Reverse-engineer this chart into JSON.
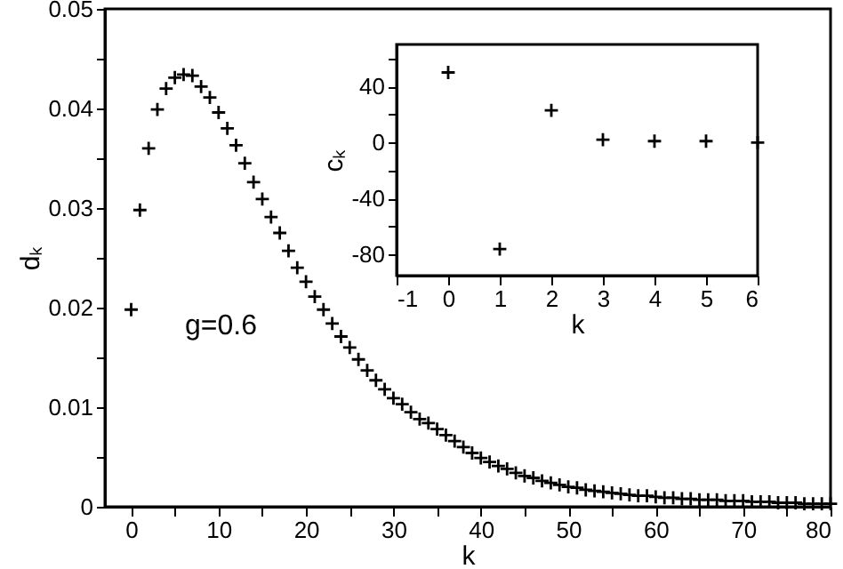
{
  "chart_data": [
    {
      "type": "scatter",
      "xlabel": "k",
      "ylabel": "dₖ",
      "marker": "cross",
      "grid": false,
      "annotations": [
        "g=0.6"
      ],
      "xlim": [
        -3,
        80
      ],
      "ylim": [
        0,
        0.05
      ],
      "xticks": [
        0,
        {
          "value": 5,
          "label": null
        },
        10,
        {
          "value": 15,
          "label": null
        },
        20,
        {
          "value": 25,
          "label": null
        },
        30,
        {
          "value": 35,
          "label": null
        },
        40,
        {
          "value": 45,
          "label": null
        },
        50,
        {
          "value": 55,
          "label": null
        },
        60,
        {
          "value": 65,
          "label": null
        },
        70,
        {
          "value": 75,
          "label": null
        },
        80
      ],
      "yticks": [
        0,
        {
          "value": 0.005,
          "label": null
        },
        0.01,
        {
          "value": 0.015,
          "label": null
        },
        0.02,
        {
          "value": 0.025,
          "label": null
        },
        0.03,
        {
          "value": 0.035,
          "label": null
        },
        0.04,
        {
          "value": 0.045,
          "label": null
        },
        0.05
      ],
      "x": [
        0,
        1,
        2,
        3,
        4,
        5,
        6,
        7,
        8,
        9,
        10,
        11,
        12,
        13,
        14,
        15,
        16,
        17,
        18,
        19,
        20,
        21,
        22,
        23,
        24,
        25,
        26,
        27,
        28,
        29,
        30,
        31,
        32,
        33,
        34,
        35,
        36,
        37,
        38,
        39,
        40,
        41,
        42,
        43,
        44,
        45,
        46,
        47,
        48,
        49,
        50,
        51,
        52,
        53,
        54,
        55,
        56,
        57,
        58,
        59,
        60,
        61,
        62,
        63,
        64,
        65,
        66,
        67,
        68,
        69,
        70,
        71,
        72,
        73,
        74,
        75,
        76,
        77,
        78,
        79,
        80
      ],
      "series": [
        {
          "color": "#000000",
          "values": [
            0.0198,
            0.0298,
            0.036,
            0.0399,
            0.042,
            0.0431,
            0.0434,
            0.0433,
            0.0422,
            0.0411,
            0.0396,
            0.038,
            0.0363,
            0.0345,
            0.0326,
            0.0309,
            0.0291,
            0.0275,
            0.0257,
            0.024,
            0.0226,
            0.0211,
            0.0198,
            0.0184,
            0.0171,
            0.016,
            0.0148,
            0.0137,
            0.0127,
            0.0118,
            0.0109,
            0.0103,
            0.0095,
            0.0088,
            0.0084,
            0.0078,
            0.0072,
            0.0066,
            0.006,
            0.0054,
            0.0049,
            0.0045,
            0.0041,
            0.0038,
            0.0034,
            0.0031,
            0.0029,
            0.0026,
            0.0024,
            0.0022,
            0.002,
            0.0019,
            0.0017,
            0.0016,
            0.0015,
            0.0014,
            0.0013,
            0.0012,
            0.0011,
            0.0011,
            0.001,
            0.0009,
            0.0009,
            0.0008,
            0.0008,
            0.0007,
            0.0007,
            0.0007,
            0.0006,
            0.0006,
            0.0006,
            0.0005,
            0.0005,
            0.0005,
            0.0004,
            0.0004,
            0.0004,
            0.0003,
            0.0003,
            0.0003,
            0.0003
          ]
        }
      ]
    },
    {
      "type": "scatter",
      "xlabel": "k",
      "ylabel": "cₖ",
      "marker": "cross",
      "grid": false,
      "xlim": [
        -1,
        6
      ],
      "ylim": [
        -95,
        70
      ],
      "xticks": [
        -1,
        0,
        1,
        2,
        3,
        4,
        5,
        6
      ],
      "yticks": [
        {
          "value": -80,
          "label": "-80"
        },
        {
          "value": -60,
          "label": null
        },
        {
          "value": -40,
          "label": "-40"
        },
        {
          "value": -20,
          "label": null
        },
        0,
        {
          "value": 20,
          "label": null
        },
        40,
        {
          "value": 60,
          "label": null
        }
      ],
      "x": [
        0,
        1,
        2,
        3,
        4,
        5,
        6
      ],
      "series": [
        {
          "color": "#000000",
          "values": [
            50,
            -76,
            23,
            2,
            1,
            1,
            0
          ]
        }
      ]
    }
  ]
}
